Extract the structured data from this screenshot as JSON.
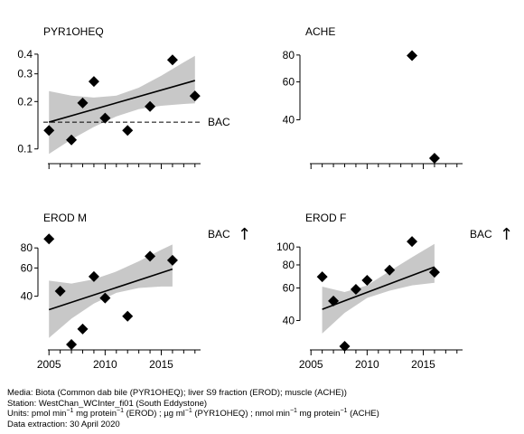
{
  "chart_data": [
    {
      "type": "scatter",
      "title": "PYR1OHEQ",
      "yscale": "log",
      "ylim": [
        0.085,
        0.45
      ],
      "yticks": [
        0.1,
        0.2,
        0.3,
        0.4
      ],
      "ytick_labels": [
        "0.1",
        "0.2",
        "0.3",
        "0.4"
      ],
      "xlim": [
        2004.5,
        2018.5
      ],
      "xticks": [
        2005,
        2010,
        2015
      ],
      "show_xtick_labels": false,
      "points": [
        {
          "x": 2005,
          "y": 0.131
        },
        {
          "x": 2007,
          "y": 0.114
        },
        {
          "x": 2008,
          "y": 0.196
        },
        {
          "x": 2009,
          "y": 0.268
        },
        {
          "x": 2010,
          "y": 0.157
        },
        {
          "x": 2012,
          "y": 0.131
        },
        {
          "x": 2014,
          "y": 0.186
        },
        {
          "x": 2016,
          "y": 0.368
        },
        {
          "x": 2018,
          "y": 0.217
        }
      ],
      "trend": {
        "x0": 2005,
        "y0": 0.148,
        "x1": 2018,
        "y1": 0.272
      },
      "band": {
        "x": [
          2005,
          2007,
          2009,
          2011,
          2013,
          2015,
          2017,
          2018
        ],
        "lower": [
          0.093,
          0.115,
          0.138,
          0.161,
          0.179,
          0.188,
          0.193,
          0.195
        ],
        "upper": [
          0.233,
          0.218,
          0.212,
          0.218,
          0.245,
          0.292,
          0.355,
          0.39
        ]
      },
      "bac": {
        "label": "BAC",
        "value": 0.148
      }
    },
    {
      "type": "scatter",
      "title": "ACHE",
      "yscale": "log",
      "ylim": [
        26,
        88
      ],
      "yticks": [
        40,
        60,
        80
      ],
      "ytick_labels": [
        "40",
        "60",
        "80"
      ],
      "xlim": [
        2004.5,
        2018.5
      ],
      "xticks": [
        2005,
        2010,
        2015
      ],
      "show_xtick_labels": false,
      "points": [
        {
          "x": 2014,
          "y": 79.5
        },
        {
          "x": 2016,
          "y": 26.5
        }
      ]
    },
    {
      "type": "scatter",
      "title": "EROD M",
      "yscale": "log",
      "ylim": [
        19.5,
        100
      ],
      "yticks": [
        40,
        60,
        80
      ],
      "ytick_labels": [
        "40",
        "60",
        "80"
      ],
      "xlim": [
        2004.5,
        2018.5
      ],
      "xticks": [
        2005,
        2010,
        2015
      ],
      "show_xtick_labels": true,
      "xtick_labels": [
        "2005",
        "2010",
        "2015"
      ],
      "points": [
        {
          "x": 2005,
          "y": 91
        },
        {
          "x": 2006,
          "y": 43
        },
        {
          "x": 2007,
          "y": 20
        },
        {
          "x": 2008,
          "y": 25
        },
        {
          "x": 2009,
          "y": 53
        },
        {
          "x": 2010,
          "y": 39
        },
        {
          "x": 2012,
          "y": 30
        },
        {
          "x": 2014,
          "y": 71
        },
        {
          "x": 2016,
          "y": 67
        }
      ],
      "trend": {
        "x0": 2005,
        "y0": 33,
        "x1": 2016,
        "y1": 59
      },
      "band": {
        "x": [
          2005,
          2007,
          2009,
          2011,
          2013,
          2015,
          2016
        ],
        "lower": [
          22,
          29,
          36,
          42,
          45,
          46,
          46
        ],
        "upper": [
          50,
          48,
          51,
          57,
          66,
          78,
          84
        ]
      },
      "bac_above": {
        "label": "BAC",
        "arrow": "↑"
      }
    },
    {
      "type": "scatter",
      "title": "EROD F",
      "yscale": "log",
      "ylim": [
        29,
        120
      ],
      "yticks": [
        40,
        60,
        80,
        100
      ],
      "ytick_labels": [
        "40",
        "60",
        "80",
        "100"
      ],
      "xlim": [
        2004.5,
        2018.5
      ],
      "xticks": [
        2005,
        2010,
        2015
      ],
      "show_xtick_labels": true,
      "xtick_labels": [
        "2005",
        "2010",
        "2015"
      ],
      "points": [
        {
          "x": 2006,
          "y": 69
        },
        {
          "x": 2007,
          "y": 51
        },
        {
          "x": 2008,
          "y": 29
        },
        {
          "x": 2009,
          "y": 59
        },
        {
          "x": 2010,
          "y": 66
        },
        {
          "x": 2012,
          "y": 75
        },
        {
          "x": 2014,
          "y": 107
        },
        {
          "x": 2016,
          "y": 73
        }
      ],
      "trend": {
        "x0": 2006,
        "y0": 46,
        "x1": 2016,
        "y1": 78
      },
      "band": {
        "x": [
          2006,
          2008,
          2010,
          2012,
          2014,
          2016
        ],
        "lower": [
          34,
          44,
          53,
          58,
          62,
          64
        ],
        "upper": [
          61,
          57,
          62,
          74,
          88,
          104
        ]
      },
      "bac_above": {
        "label": "BAC",
        "arrow": "↑"
      }
    }
  ],
  "footer": {
    "media": "Media: Biota (Common dab bile (PYR1OHEQ); liver S9 fraction (EROD); muscle (ACHE))",
    "station": "Station: WestChan_WCInter_fi01 (South Eddystone)",
    "units_prefix": "Units:  pmol min",
    "units_sup1": "−1",
    "units_mid1": " mg protein",
    "units_sup2": "−1",
    "units_mid2": " (EROD) ;  µg ml",
    "units_sup3": "−1",
    "units_mid3": " (PYR1OHEQ) ;  nmol min",
    "units_sup4": "−1",
    "units_mid4": " mg protein",
    "units_sup5": "−1",
    "units_suffix": " (ACHE)",
    "extraction": "Data extraction: 30 April 2020"
  }
}
